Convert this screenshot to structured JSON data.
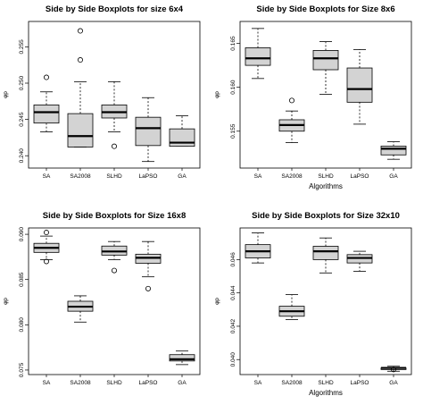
{
  "chart_data": [
    {
      "type": "boxplot",
      "title": "Side by Side Boxplots for size 6x4",
      "xlabel": "",
      "ylabel": "φp",
      "categories": [
        "SA",
        "SA2008",
        "SLHD",
        "LaPSO",
        "GA"
      ],
      "yticks": [
        "0.240",
        "0.245",
        "0.250",
        "0.255"
      ],
      "ylim": [
        0.2383,
        0.2585
      ],
      "boxes": [
        {
          "whisker_low": 0.2433,
          "q1": 0.2445,
          "median": 0.246,
          "q3": 0.247,
          "whisker_high": 0.2488,
          "outliers": [
            0.2508
          ]
        },
        {
          "whisker_low": 0.2412,
          "q1": 0.2412,
          "median": 0.2427,
          "q3": 0.2458,
          "whisker_high": 0.2502,
          "outliers": [
            0.2532,
            0.2572
          ]
        },
        {
          "whisker_low": 0.2433,
          "q1": 0.2452,
          "median": 0.246,
          "q3": 0.247,
          "whisker_high": 0.2502,
          "outliers": [
            0.2413
          ]
        },
        {
          "whisker_low": 0.2392,
          "q1": 0.2414,
          "median": 0.2438,
          "q3": 0.2453,
          "whisker_high": 0.248,
          "outliers": []
        },
        {
          "whisker_low": 0.2413,
          "q1": 0.2413,
          "median": 0.2418,
          "q3": 0.2437,
          "whisker_high": 0.2455,
          "outliers": []
        }
      ]
    },
    {
      "type": "boxplot",
      "title": "Side by Side Boxplots for Size 8x6",
      "xlabel": "Algorithms",
      "ylabel": "φp",
      "categories": [
        "SA",
        "SA2008",
        "SLHD",
        "LaPSO",
        "GA"
      ],
      "yticks": [
        "0.155",
        "0.160",
        "0.165"
      ],
      "ylim": [
        0.1508,
        0.1675
      ],
      "boxes": [
        {
          "whisker_low": 0.161,
          "q1": 0.1625,
          "median": 0.1633,
          "q3": 0.1645,
          "whisker_high": 0.1667,
          "outliers": []
        },
        {
          "whisker_low": 0.1537,
          "q1": 0.155,
          "median": 0.1557,
          "q3": 0.1563,
          "whisker_high": 0.1573,
          "outliers": [
            0.1585
          ]
        },
        {
          "whisker_low": 0.1592,
          "q1": 0.162,
          "median": 0.1633,
          "q3": 0.1642,
          "whisker_high": 0.1652,
          "outliers": []
        },
        {
          "whisker_low": 0.1558,
          "q1": 0.1583,
          "median": 0.1598,
          "q3": 0.1622,
          "whisker_high": 0.1643,
          "outliers": []
        },
        {
          "whisker_low": 0.1518,
          "q1": 0.1523,
          "median": 0.153,
          "q3": 0.1533,
          "whisker_high": 0.1538,
          "outliers": []
        }
      ]
    },
    {
      "type": "boxplot",
      "title": "Side by Side Boxplots for Size 16x8",
      "xlabel": "",
      "ylabel": "φp",
      "categories": [
        "SA",
        "SA2008",
        "SLHD",
        "LaPSO",
        "GA"
      ],
      "yticks": [
        "0.075",
        "0.080",
        "0.085",
        "0.090"
      ],
      "ylim": [
        0.0745,
        0.0907
      ],
      "boxes": [
        {
          "whisker_low": 0.0872,
          "q1": 0.088,
          "median": 0.0885,
          "q3": 0.089,
          "whisker_high": 0.0898,
          "outliers": [
            0.087,
            0.0902
          ]
        },
        {
          "whisker_low": 0.0803,
          "q1": 0.0815,
          "median": 0.082,
          "q3": 0.0826,
          "whisker_high": 0.0832,
          "outliers": []
        },
        {
          "whisker_low": 0.0872,
          "q1": 0.0877,
          "median": 0.0881,
          "q3": 0.0887,
          "whisker_high": 0.0892,
          "outliers": [
            0.086
          ]
        },
        {
          "whisker_low": 0.0853,
          "q1": 0.0868,
          "median": 0.0874,
          "q3": 0.0878,
          "whisker_high": 0.0892,
          "outliers": [
            0.084
          ]
        },
        {
          "whisker_low": 0.0756,
          "q1": 0.076,
          "median": 0.0762,
          "q3": 0.0767,
          "whisker_high": 0.0771,
          "outliers": []
        }
      ]
    },
    {
      "type": "boxplot",
      "title": "Side by Side Boxplots for Size 32x10",
      "xlabel": "Algorithms",
      "ylabel": "φp",
      "categories": [
        "SA",
        "SA2008",
        "SLHD",
        "LaPSO",
        "GA"
      ],
      "yticks": [
        "0.040",
        "0.042",
        "0.044",
        "0.046"
      ],
      "ylim": [
        0.0391,
        0.0479
      ],
      "boxes": [
        {
          "whisker_low": 0.0458,
          "q1": 0.0461,
          "median": 0.0465,
          "q3": 0.0469,
          "whisker_high": 0.0476,
          "outliers": []
        },
        {
          "whisker_low": 0.0424,
          "q1": 0.0426,
          "median": 0.0429,
          "q3": 0.0432,
          "whisker_high": 0.0439,
          "outliers": []
        },
        {
          "whisker_low": 0.0452,
          "q1": 0.046,
          "median": 0.0465,
          "q3": 0.0468,
          "whisker_high": 0.0473,
          "outliers": []
        },
        {
          "whisker_low": 0.0453,
          "q1": 0.0458,
          "median": 0.0461,
          "q3": 0.0463,
          "whisker_high": 0.0465,
          "outliers": []
        },
        {
          "whisker_low": 0.0393,
          "q1": 0.0394,
          "median": 0.0395,
          "q3": 0.0395,
          "whisker_high": 0.0396,
          "outliers": [
            0.0394
          ]
        }
      ]
    }
  ]
}
